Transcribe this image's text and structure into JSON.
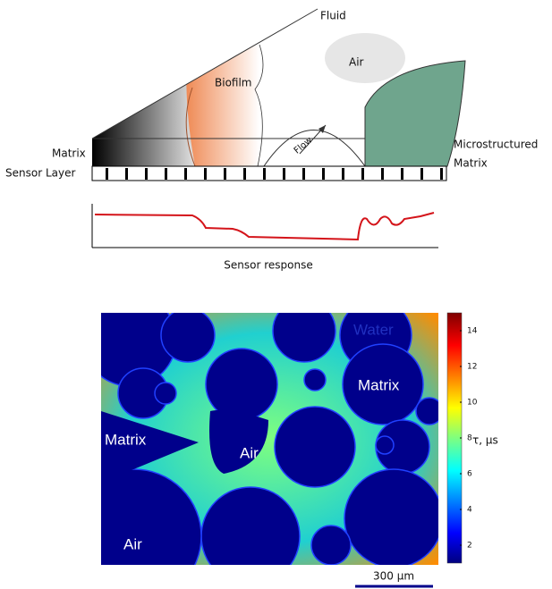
{
  "schematic": {
    "fluid": "Fluid",
    "air": "Air",
    "biofilm": "Biofilm",
    "flow": "Flow",
    "matrix": "Matrix",
    "sensor_layer": "Sensor Layer",
    "microstructured": [
      "Microstructured",
      "Matrix"
    ],
    "response": "Sensor response"
  },
  "image": {
    "labels": [
      "Water",
      "Matrix",
      "Matrix",
      "Air",
      "Air"
    ],
    "colorbar": {
      "label": "τ, µs",
      "lim": [
        1,
        15
      ],
      "ticks": [
        2,
        4,
        6,
        8,
        10,
        12,
        14
      ]
    },
    "scale_bar": "300 µm"
  }
}
